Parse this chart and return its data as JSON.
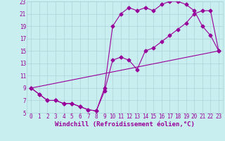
{
  "xlabel": "Windchill (Refroidissement éolien,°C)",
  "bg_color": "#c8eef0",
  "grid_color": "#aad4da",
  "line_color": "#990099",
  "xlim": [
    -0.5,
    23.5
  ],
  "ylim": [
    5,
    23
  ],
  "xticks": [
    0,
    1,
    2,
    3,
    4,
    5,
    6,
    7,
    8,
    9,
    10,
    11,
    12,
    13,
    14,
    15,
    16,
    17,
    18,
    19,
    20,
    21,
    22,
    23
  ],
  "yticks": [
    5,
    7,
    9,
    11,
    13,
    15,
    17,
    19,
    21,
    23
  ],
  "line1_x": [
    0,
    1,
    2,
    3,
    4,
    5,
    6,
    7,
    8,
    9,
    10,
    11,
    12,
    13,
    14,
    15,
    16,
    17,
    18,
    19,
    20,
    21,
    22,
    23
  ],
  "line1_y": [
    9,
    8,
    7,
    7,
    6.5,
    6.5,
    6,
    5.5,
    5.3,
    9.0,
    19.0,
    21.0,
    22.0,
    21.5,
    22.0,
    21.5,
    22.5,
    23.0,
    23.0,
    22.5,
    21.5,
    19.0,
    17.5,
    15.0
  ],
  "line2_x": [
    0,
    1,
    2,
    3,
    4,
    5,
    6,
    7,
    8,
    9,
    10,
    11,
    12,
    13,
    14,
    15,
    16,
    17,
    18,
    19,
    20,
    21,
    22,
    23
  ],
  "line2_y": [
    9,
    8,
    7,
    7,
    6.5,
    6.5,
    6,
    5.5,
    5.3,
    8.5,
    13.5,
    14.0,
    13.5,
    12.0,
    15.0,
    15.5,
    16.5,
    17.5,
    18.5,
    19.5,
    21.0,
    21.5,
    21.5,
    15.0
  ],
  "line3_x": [
    0,
    23
  ],
  "line3_y": [
    9,
    15
  ],
  "tick_fontsize": 5.5,
  "xlabel_fontsize": 6.5,
  "marker_size": 2.5,
  "line_width": 0.8
}
